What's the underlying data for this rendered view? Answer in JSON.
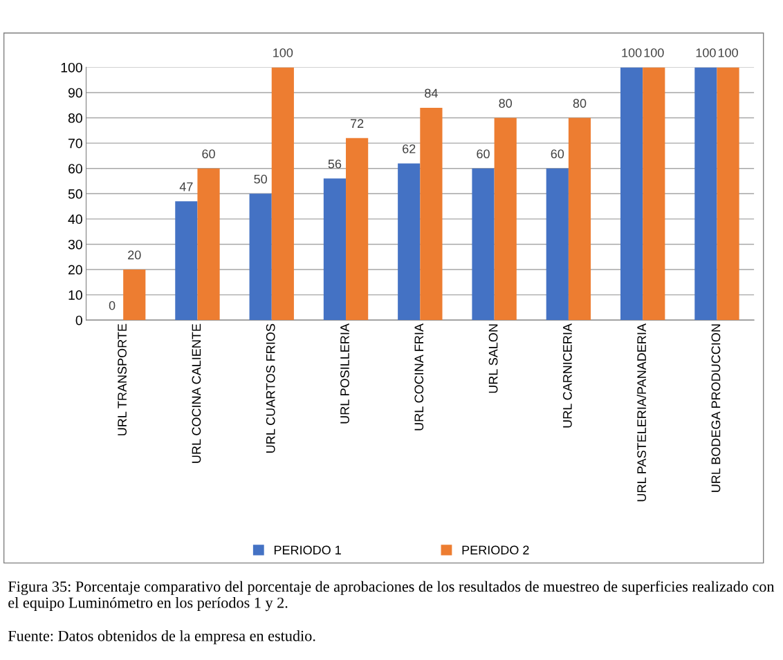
{
  "chart_data": {
    "type": "bar",
    "categories": [
      "URL TRANSPORTE",
      "URL COCINA CALIENTE",
      "URL CUARTOS FRIOS",
      "URL POSILLERIA",
      "URL COCINA FRIA",
      "URL SALON",
      "URL CARNICERIA",
      "URL PASTELERIA/PANADERIA",
      "URL BODEGA PRODUCCION"
    ],
    "series": [
      {
        "name": "PERIODO 1",
        "color": "#4472c4",
        "values": [
          0,
          47,
          50,
          56,
          62,
          60,
          60,
          100,
          100
        ]
      },
      {
        "name": "PERIODO 2",
        "color": "#ed7d31",
        "values": [
          20,
          60,
          100,
          72,
          84,
          80,
          80,
          100,
          100
        ]
      }
    ],
    "ylim": [
      0,
      100
    ],
    "yticks": [
      0,
      10,
      20,
      30,
      40,
      50,
      60,
      70,
      80,
      90,
      100
    ],
    "grid": "y",
    "legend": "bottom",
    "data_labels": true,
    "annotations": [
      "Figura 35: Porcentaje comparativo del porcentaje de aprobaciones de los resultados de muestreo de superficies realizado con el equipo Luminómetro en los períodos 1 y 2.",
      "Fuente: Datos obtenidos de la empresa en estudio."
    ]
  }
}
